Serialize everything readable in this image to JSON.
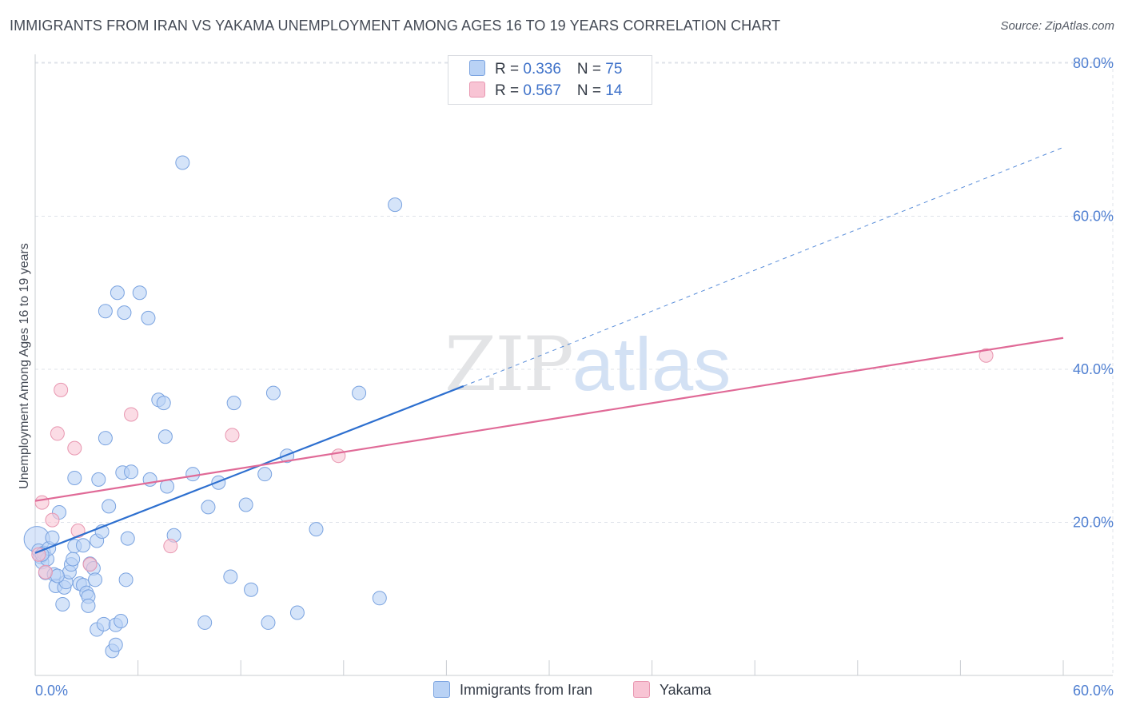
{
  "header": {
    "title": "IMMIGRANTS FROM IRAN VS YAKAMA UNEMPLOYMENT AMONG AGES 16 TO 19 YEARS CORRELATION CHART",
    "source": "Source: ZipAtlas.com"
  },
  "watermark": {
    "zip": "ZIP",
    "atlas": "atlas"
  },
  "legend_top": {
    "rows": [
      {
        "r_label": "R = ",
        "r_value": "0.336",
        "n_label": "N = ",
        "n_value": "75"
      },
      {
        "r_label": "R = ",
        "r_value": "0.567",
        "n_label": "N = ",
        "n_value": "14"
      }
    ]
  },
  "colors": {
    "blue_fill": "#b9d2f5",
    "blue_stroke": "#7aa3e0",
    "blue_line": "#2d6fcf",
    "pink_fill": "#f8c4d4",
    "pink_stroke": "#e896b0",
    "pink_line": "#e06a97",
    "grid": "#dfe3ea",
    "axis_text": "#4f7fd1"
  },
  "chart_data": {
    "type": "scatter",
    "title": "IMMIGRANTS FROM IRAN VS YAKAMA UNEMPLOYMENT AMONG AGES 16 TO 19 YEARS CORRELATION CHART",
    "xlabel": "",
    "ylabel": "Unemployment Among Ages 16 to 19 years",
    "xlim": [
      0,
      60
    ],
    "ylim": [
      0,
      80
    ],
    "x_ticks": [
      0,
      60
    ],
    "x_tick_labels": [
      "0.0%",
      "60.0%"
    ],
    "y_ticks": [
      20,
      40,
      60,
      80
    ],
    "y_tick_labels": [
      "20.0%",
      "40.0%",
      "60.0%",
      "80.0%"
    ],
    "grid": true,
    "legend_position": "bottom",
    "series": [
      {
        "name": "Immigrants from Iran",
        "color": "#b9d2f5",
        "r": 0.336,
        "n": 75,
        "trend": {
          "x": [
            0,
            25.0
          ],
          "y": [
            16.0,
            37.8
          ],
          "extension": {
            "x": [
              25.0,
              60
            ],
            "y": [
              37.8,
              69.0
            ]
          }
        },
        "points": [
          [
            0.1,
            17.8
          ],
          [
            0.2,
            16.3
          ],
          [
            0.3,
            15.5
          ],
          [
            0.4,
            14.8
          ],
          [
            0.5,
            16.0
          ],
          [
            0.6,
            13.4
          ],
          [
            0.7,
            15.2
          ],
          [
            0.8,
            16.6
          ],
          [
            1.0,
            18.0
          ],
          [
            1.1,
            13.2
          ],
          [
            1.2,
            11.7
          ],
          [
            1.4,
            21.3
          ],
          [
            1.6,
            9.3
          ],
          [
            1.7,
            11.5
          ],
          [
            1.8,
            12.2
          ],
          [
            2.0,
            13.5
          ],
          [
            2.1,
            14.5
          ],
          [
            2.2,
            15.2
          ],
          [
            2.3,
            25.8
          ],
          [
            2.3,
            16.9
          ],
          [
            2.6,
            12.0
          ],
          [
            2.8,
            11.8
          ],
          [
            2.8,
            17.0
          ],
          [
            3.0,
            10.8
          ],
          [
            3.1,
            10.3
          ],
          [
            3.1,
            9.1
          ],
          [
            3.2,
            14.6
          ],
          [
            3.4,
            14.0
          ],
          [
            3.5,
            12.5
          ],
          [
            3.6,
            6.0
          ],
          [
            3.6,
            17.6
          ],
          [
            3.7,
            25.6
          ],
          [
            3.9,
            18.8
          ],
          [
            4.0,
            6.7
          ],
          [
            4.1,
            31.0
          ],
          [
            4.1,
            47.6
          ],
          [
            4.3,
            22.1
          ],
          [
            4.5,
            3.2
          ],
          [
            4.7,
            4.0
          ],
          [
            4.7,
            6.6
          ],
          [
            4.8,
            50.0
          ],
          [
            5.0,
            7.1
          ],
          [
            5.1,
            26.5
          ],
          [
            5.2,
            47.4
          ],
          [
            5.3,
            12.5
          ],
          [
            5.4,
            17.9
          ],
          [
            5.6,
            26.6
          ],
          [
            6.1,
            50.0
          ],
          [
            6.6,
            46.7
          ],
          [
            6.7,
            25.6
          ],
          [
            7.2,
            36.0
          ],
          [
            7.5,
            35.6
          ],
          [
            7.6,
            31.2
          ],
          [
            7.7,
            24.7
          ],
          [
            8.1,
            18.3
          ],
          [
            8.6,
            67.0
          ],
          [
            9.2,
            26.3
          ],
          [
            9.9,
            6.9
          ],
          [
            10.1,
            22.0
          ],
          [
            10.7,
            25.2
          ],
          [
            11.4,
            12.9
          ],
          [
            11.6,
            35.6
          ],
          [
            12.3,
            22.3
          ],
          [
            12.6,
            11.2
          ],
          [
            13.4,
            26.3
          ],
          [
            13.6,
            6.9
          ],
          [
            13.9,
            36.9
          ],
          [
            14.7,
            28.7
          ],
          [
            15.3,
            8.2
          ],
          [
            16.4,
            19.1
          ],
          [
            18.9,
            36.9
          ],
          [
            20.1,
            10.1
          ],
          [
            21.0,
            61.5
          ],
          [
            0.4,
            15.8
          ],
          [
            1.3,
            13.0
          ]
        ]
      },
      {
        "name": "Yakama",
        "color": "#f8c4d4",
        "r": 0.567,
        "n": 14,
        "trend": {
          "x": [
            0,
            60
          ],
          "y": [
            22.8,
            44.1
          ]
        },
        "points": [
          [
            0.2,
            15.8
          ],
          [
            0.4,
            22.6
          ],
          [
            0.6,
            13.5
          ],
          [
            1.0,
            20.3
          ],
          [
            1.3,
            31.6
          ],
          [
            1.5,
            37.3
          ],
          [
            2.3,
            29.7
          ],
          [
            2.5,
            18.9
          ],
          [
            3.2,
            14.5
          ],
          [
            5.6,
            34.1
          ],
          [
            7.9,
            16.9
          ],
          [
            11.5,
            31.4
          ],
          [
            17.7,
            28.7
          ],
          [
            55.5,
            41.8
          ]
        ]
      }
    ]
  },
  "legend_bottom": {
    "items": [
      {
        "label": "Immigrants from Iran"
      },
      {
        "label": "Yakama"
      }
    ]
  }
}
